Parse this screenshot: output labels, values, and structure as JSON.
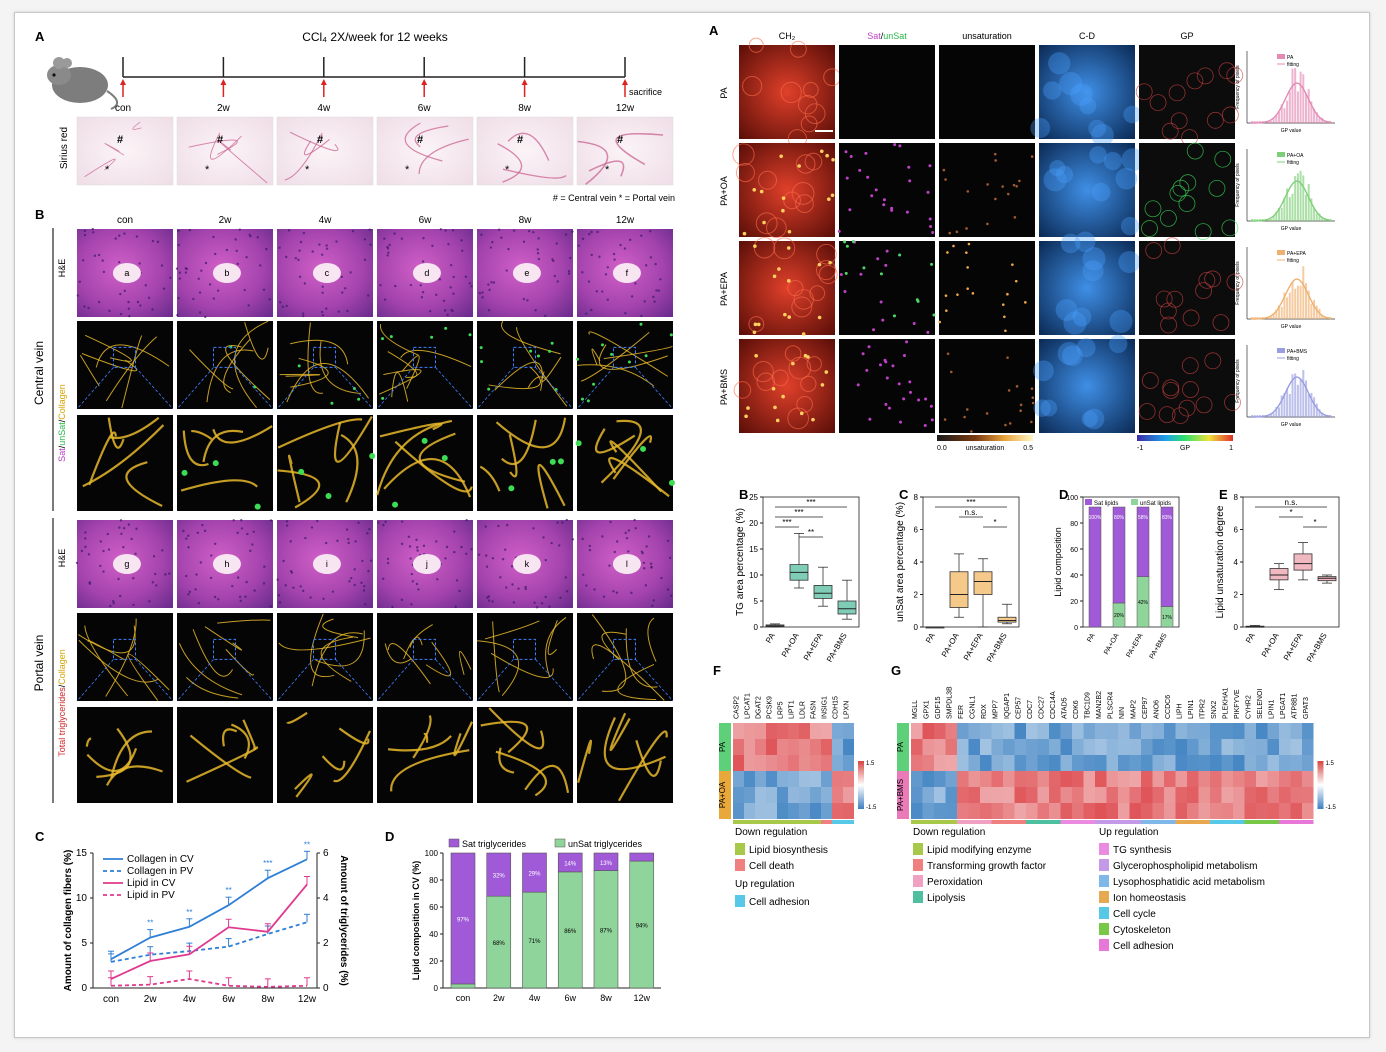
{
  "left": {
    "panelA": {
      "label": "A",
      "title": "CCl₄ 2X/week for 12 weeks",
      "timepoints": [
        "con",
        "2w",
        "4w",
        "6w",
        "8w",
        "12w"
      ],
      "sacrifice": "sacrifice",
      "stain": "Sirius red",
      "legend": "# = Central vein   * = Portal vein"
    },
    "panelB": {
      "label": "B",
      "cols": [
        "con",
        "2w",
        "4w",
        "6w",
        "8w",
        "12w"
      ],
      "he": "H&E",
      "cv_group": "Central vein",
      "pv_group": "Portal vein",
      "cv_stain": [
        "Sat",
        "/",
        "unSat",
        "/",
        "Collagen"
      ],
      "pv_stain": [
        "Total triglycerides",
        "/",
        "Collagen"
      ],
      "cv_letters": [
        "a",
        "b",
        "c",
        "d",
        "e",
        "f"
      ],
      "pv_letters": [
        "g",
        "h",
        "i",
        "j",
        "k",
        "l"
      ]
    }
  },
  "right": {
    "panelA": {
      "label": "A",
      "cols": [
        "CH₂",
        "Sat",
        "/",
        "unSat",
        "unsaturation",
        "C-D",
        "GP"
      ],
      "rows": [
        "PA",
        "PA+OA",
        "PA+EPA",
        "PA+BMS"
      ],
      "hist_ylabel": "Frequency of pixels",
      "hist_xlabel": "GP value",
      "hist_fit": "fitting",
      "unsat_scale": [
        "0.0",
        "unsaturation",
        "0.5"
      ],
      "gp_scale": [
        "-1",
        "GP",
        "1"
      ]
    },
    "panelF": {
      "label": "F",
      "genes": [
        "CASP2",
        "LPCAT1",
        "DGAT2",
        "PCSK9",
        "LRP5",
        "LIPT1",
        "LDLR",
        "FASN",
        "INSIG1",
        "CDH15",
        "LPXN"
      ],
      "groups": [
        "PA",
        "PA+OA"
      ],
      "scale": [
        "1.5",
        "-1.5"
      ],
      "legend_down": "Down regulation",
      "legend_down_items": [
        "Lipid biosynthesis",
        "Cell death"
      ],
      "legend_up": "Up regulation",
      "legend_up_items": [
        "Cell adhesion"
      ]
    },
    "panelG": {
      "label": "G",
      "genes": [
        "MGLL",
        "GPX1",
        "GDF15",
        "SMPDL3B",
        "FER",
        "CGNL1",
        "RDX",
        "MPP7",
        "IQGAP1",
        "CEP57",
        "CDC7",
        "CDC27",
        "CDC14A",
        "ATAD5",
        "CDK6",
        "TBC1D9",
        "MAN2B2",
        "PLSCR4",
        "NIN",
        "MAP2",
        "CEP97",
        "ANO6",
        "CCDC6",
        "LIPH",
        "LPIN1",
        "ITPR2",
        "SNX2",
        "PLEKHA1",
        "PIKFYVE",
        "CYHR2",
        "SELENOI",
        "LPIN1",
        "LPGAT1",
        "ATP8B1",
        "GPAT3"
      ],
      "groups": [
        "PA",
        "PA+BMS"
      ],
      "scale": [
        "1.5",
        "-1.5"
      ],
      "legend_down": "Down regulation",
      "legend_down_items": [
        "Lipid modifying enzyme",
        "Transforming growth factor",
        "Peroxidation",
        "Lipolysis"
      ],
      "legend_up": "Up regulation",
      "legend_up_items": [
        "TG synthesis",
        "Glycerophospholipid metabolism",
        "Lysophosphatidic acid metabolism",
        "Ion homeostasis",
        "Cell cycle",
        "Cytoskeleton",
        "Cell adhesion"
      ]
    }
  },
  "colors": {
    "collagen_cv": "#2f7fd6",
    "lipid_cv": "#e03a8e",
    "sat": "#a05ad8",
    "unsat": "#8fd49a",
    "box_oa": "#7fcdb6",
    "box_epa": "#f5c98a",
    "box_bms": "#c8c8e6",
    "heat_high": "#e0555a",
    "heat_low": "#4b8fc8"
  },
  "chart_data": [
    {
      "id": "C-left",
      "type": "line",
      "label": "C",
      "categories": [
        "con",
        "2w",
        "4w",
        "6w",
        "8w",
        "12w"
      ],
      "series": [
        {
          "name": "Collagen in CV",
          "axis": "left",
          "values": [
            3.2,
            5.6,
            6.8,
            9.2,
            12.2,
            14.3
          ]
        },
        {
          "name": "Collagen in PV",
          "axis": "left",
          "values": [
            2.9,
            3.7,
            4.1,
            4.6,
            6.0,
            7.3
          ]
        },
        {
          "name": "Lipid in CV",
          "axis": "right",
          "values": [
            0.4,
            1.2,
            1.5,
            2.7,
            2.5,
            4.6
          ]
        },
        {
          "name": "Lipid in PV",
          "axis": "right",
          "values": [
            0.1,
            0.15,
            0.4,
            0.1,
            0.05,
            0.1
          ]
        }
      ],
      "ylabel": "Amount of collagen fibers (%)",
      "y2label": "Amount of triglycerides (%)",
      "ylim": [
        0,
        15
      ],
      "y2lim": [
        0,
        6
      ],
      "yticks": [
        "0",
        "5",
        "10",
        "15"
      ],
      "y2ticks": [
        "0",
        "2",
        "4",
        "6"
      ],
      "annotations": [
        "**",
        "**",
        "**",
        "***",
        "**",
        "**",
        "**",
        "***"
      ]
    },
    {
      "id": "D-left",
      "type": "bar",
      "label": "D",
      "categories": [
        "con",
        "2w",
        "4w",
        "6w",
        "8w",
        "12w"
      ],
      "series": [
        {
          "name": "Sat triglycerides",
          "values": [
            97,
            32,
            29,
            14,
            13,
            6
          ]
        },
        {
          "name": "unSat triglycerides",
          "values": [
            3,
            68,
            71,
            86,
            87,
            94
          ]
        }
      ],
      "percent_labels_sat": [
        "97%",
        "32%",
        "29%",
        "14%",
        "13%",
        ""
      ],
      "percent_labels_unsat": [
        "",
        "68%",
        "71%",
        "86%",
        "87%",
        "94%"
      ],
      "ylabel": "Lipid composition in CV (%)",
      "ylim": [
        0,
        100
      ],
      "yticks": [
        "0",
        "20",
        "40",
        "60",
        "80",
        "100"
      ]
    },
    {
      "id": "B-right",
      "type": "box",
      "label": "B",
      "categories": [
        "PA",
        "PA+OA",
        "PA+EPA",
        "PA+BMS"
      ],
      "stats": [
        {
          "min": 0,
          "q1": 0.1,
          "median": 0.2,
          "q3": 0.4,
          "max": 0.6
        },
        {
          "min": 7.5,
          "q1": 9,
          "median": 10.5,
          "q3": 12,
          "max": 18
        },
        {
          "min": 4,
          "q1": 5.5,
          "median": 6.5,
          "q3": 8,
          "max": 11.5
        },
        {
          "min": 1.5,
          "q1": 2.5,
          "median": 3.5,
          "q3": 5,
          "max": 9
        }
      ],
      "ylabel": "TG area percentage (%)",
      "ylim": [
        0,
        25
      ],
      "yticks": [
        "0",
        "5",
        "10",
        "15",
        "20",
        "25"
      ],
      "significance": [
        "***",
        "***",
        "***",
        "**"
      ]
    },
    {
      "id": "C-right",
      "type": "box",
      "label": "C",
      "categories": [
        "PA",
        "PA+OA",
        "PA+EPA",
        "PA+BMS"
      ],
      "stats": [
        {
          "min": 0,
          "q1": 0,
          "median": 0,
          "q3": 0,
          "max": 0
        },
        {
          "min": 0.6,
          "q1": 1.2,
          "median": 2.0,
          "q3": 3.4,
          "max": 4.5
        },
        {
          "min": 0,
          "q1": 2.0,
          "median": 2.8,
          "q3": 3.4,
          "max": 4.2
        },
        {
          "min": 0.2,
          "q1": 0.3,
          "median": 0.4,
          "q3": 0.6,
          "max": 1.4
        }
      ],
      "ylabel": "unSat area percentage (%)",
      "ylim": [
        0,
        8
      ],
      "yticks": [
        "0",
        "2",
        "4",
        "6",
        "8"
      ],
      "significance": [
        "***",
        "n.s.",
        "*"
      ]
    },
    {
      "id": "D-right",
      "type": "bar",
      "label": "D",
      "categories": [
        "PA",
        "PA+OA",
        "PA+EPA",
        "PA+BMS"
      ],
      "series": [
        {
          "name": "Sat lipids",
          "values": [
            100,
            80,
            58,
            83
          ]
        },
        {
          "name": "unSat lipids",
          "values": [
            0,
            20,
            42,
            17
          ]
        }
      ],
      "percent_labels_sat": [
        "100%",
        "80%",
        "58%",
        "83%"
      ],
      "percent_labels_unsat": [
        "",
        "20%",
        "42%",
        "17%"
      ],
      "ylabel": "Lipid composition",
      "ylim": [
        0,
        100
      ],
      "yticks": [
        "0",
        "20",
        "40",
        "60",
        "80",
        "100"
      ]
    },
    {
      "id": "E-right",
      "type": "box",
      "label": "E",
      "categories": [
        "PA",
        "PA+OA",
        "PA+EPA",
        "PA+BMS"
      ],
      "stats": [
        {
          "min": 0,
          "q1": 0,
          "median": 0,
          "q3": 0.05,
          "max": 0.1
        },
        {
          "min": 2.3,
          "q1": 2.9,
          "median": 3.2,
          "q3": 3.6,
          "max": 3.9
        },
        {
          "min": 2.9,
          "q1": 3.5,
          "median": 3.9,
          "q3": 4.5,
          "max": 5.2
        },
        {
          "min": 2.7,
          "q1": 2.85,
          "median": 3.0,
          "q3": 3.1,
          "max": 3.2
        }
      ],
      "ylabel": "Lipid unsaturation degree",
      "ylim": [
        0,
        8
      ],
      "yticks": [
        "0",
        "2",
        "4",
        "6",
        "8"
      ],
      "significance": [
        "n.s.",
        "*",
        "*"
      ]
    }
  ]
}
